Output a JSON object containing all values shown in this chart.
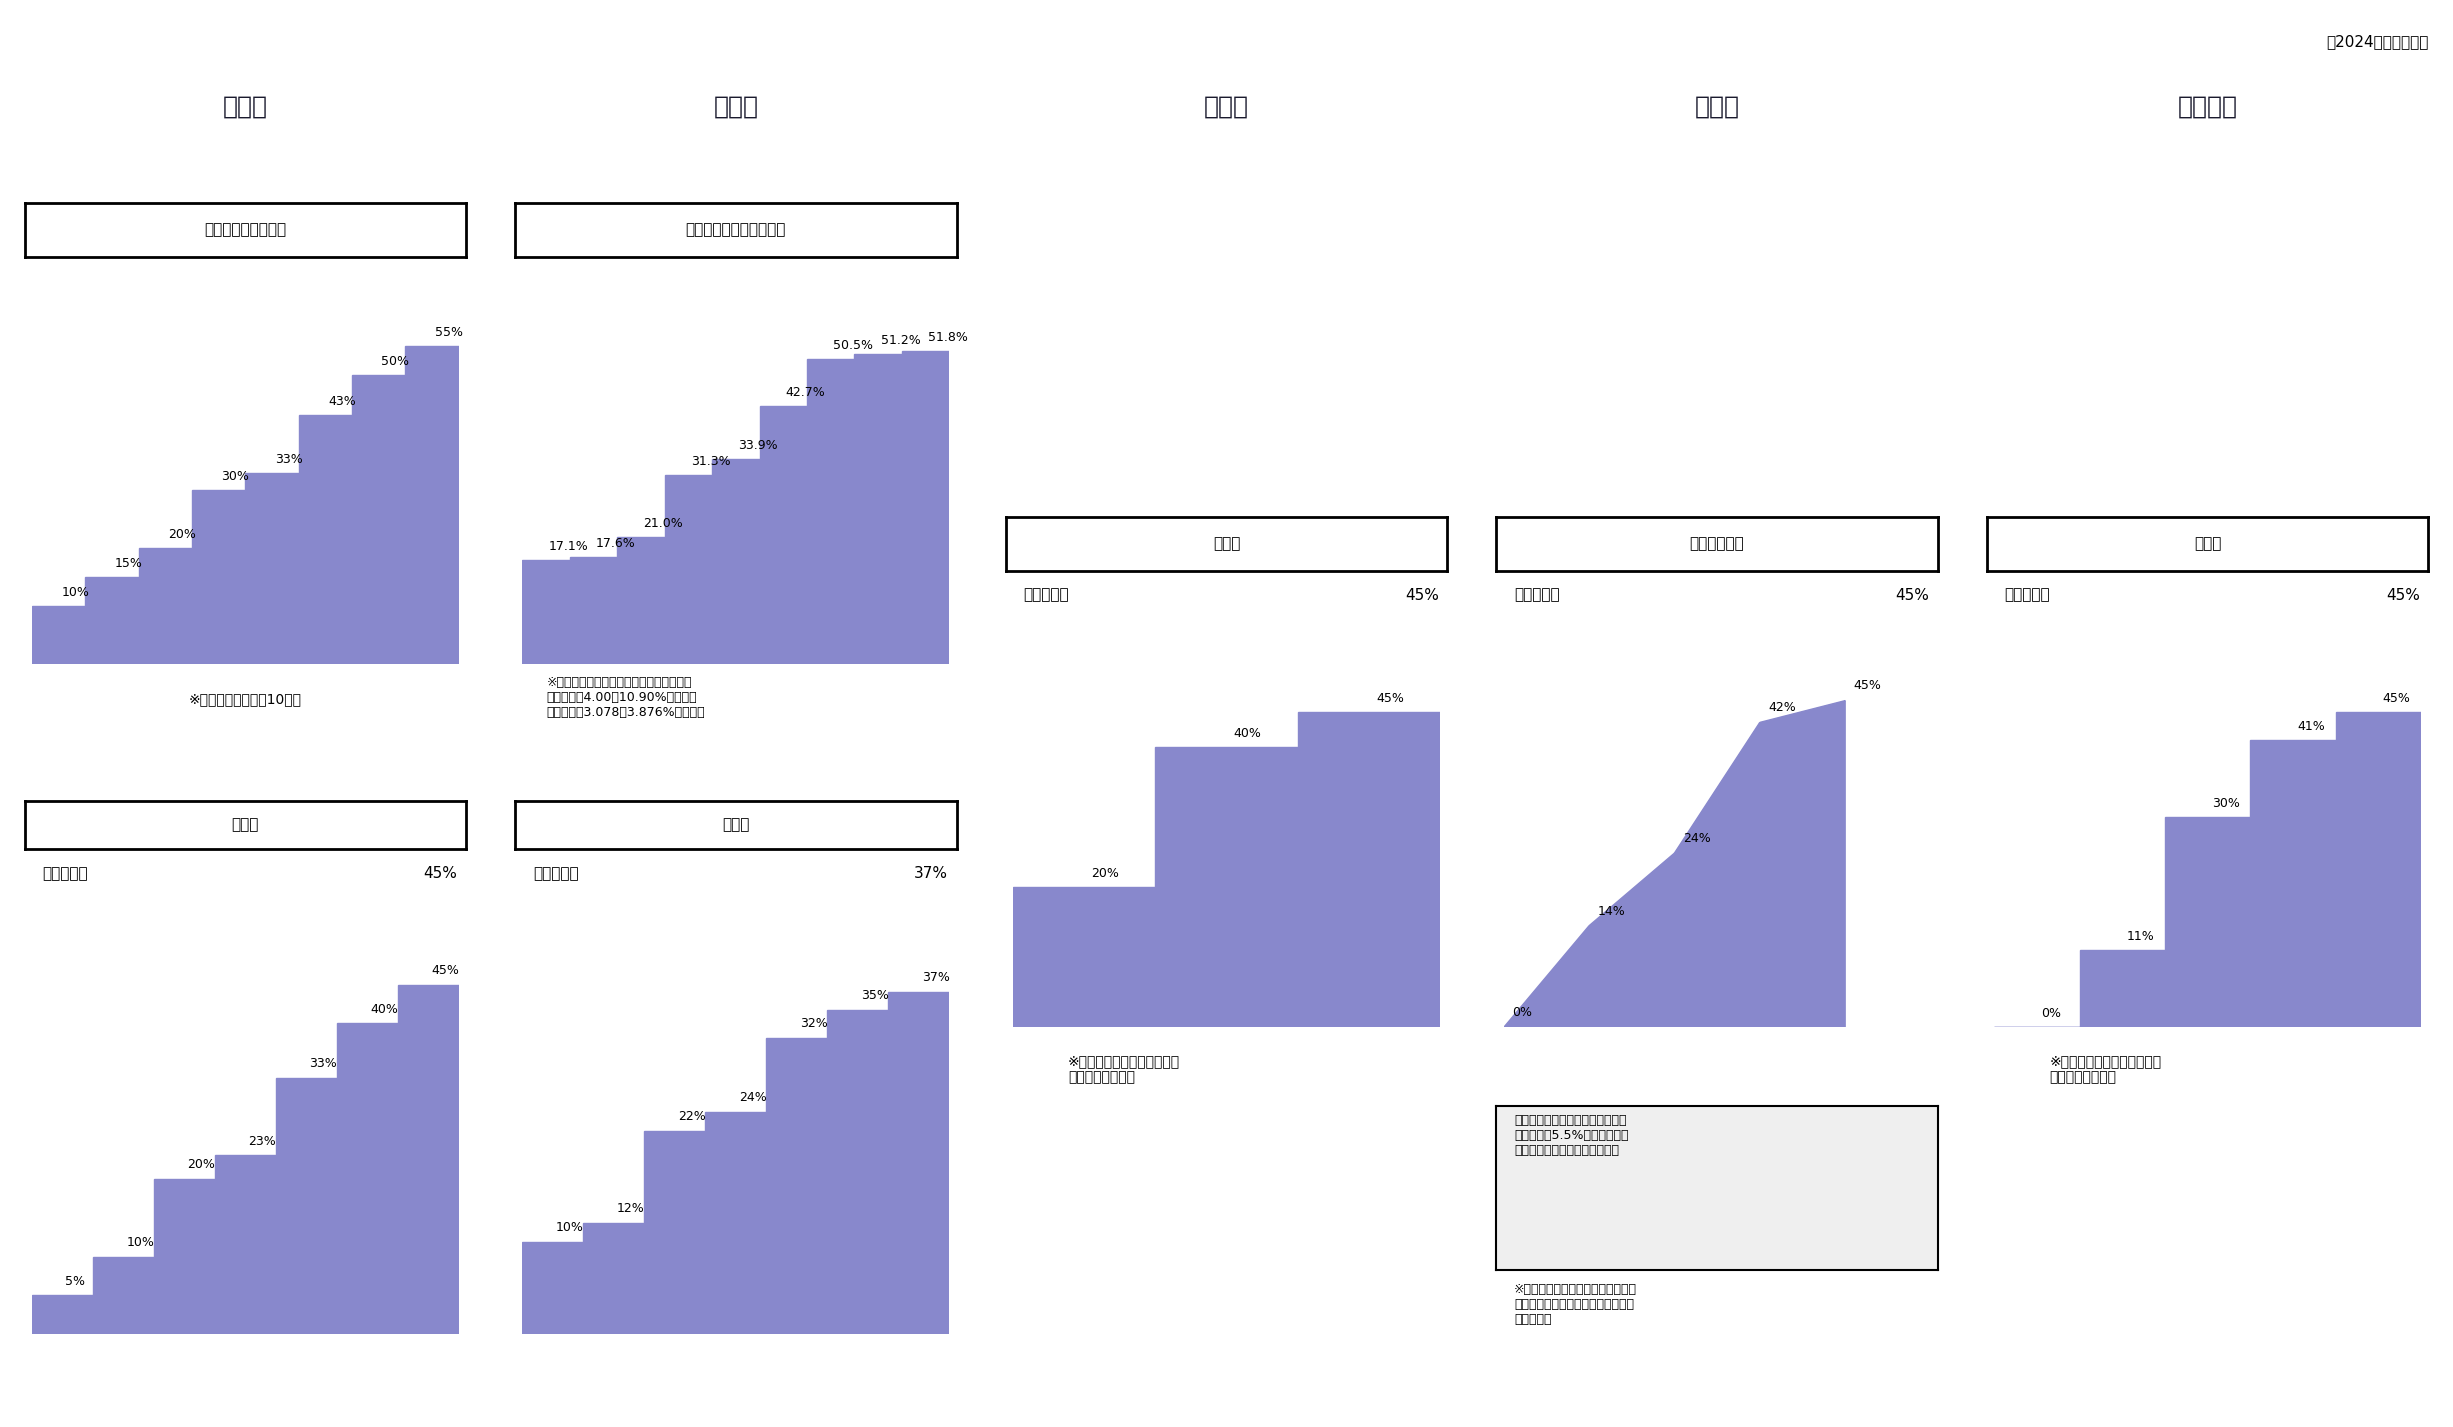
{
  "header_bg": "#b3b3e6",
  "header_border": "#1a1a2e",
  "chart_bg": "#efefef",
  "bar_color": "#8888cc",
  "date_text": "（2024年１月現在）",
  "columns": [
    "日　本",
    "米　国",
    "英　国",
    "ドイツ",
    "フランス"
  ],
  "japan_combined_title": "所得税＋個人住民税",
  "japan_combined_rates": [
    10,
    15,
    20,
    30,
    33,
    43,
    50,
    55
  ],
  "japan_combined_note": "※個人住民税（一律10％）",
  "japan_income_title": "所得税",
  "japan_income_subtitle": "（７段階）",
  "japan_income_rates": [
    5,
    10,
    20,
    23,
    33,
    40,
    45
  ],
  "usa_combined_title": "所得税＋地方個人所得税",
  "usa_combined_rates": [
    17.1,
    17.6,
    21.0,
    31.3,
    33.9,
    42.7,
    50.5,
    51.2,
    51.8
  ],
  "usa_combined_note": "※ニューヨーク州・ニューヨーク市の場合\n　州税率：4.00～10.90%　９段階\n　市税率：3.078～3.876%　４段階",
  "usa_income_title": "所得税",
  "usa_income_subtitle": "（７段階）",
  "usa_income_rates": [
    10,
    12,
    22,
    24,
    32,
    35,
    37
  ],
  "uk_income_title": "所得税",
  "uk_income_subtitle": "（３段階）",
  "uk_income_rates": [
    20,
    40,
    45
  ],
  "uk_note": "※個人所得に対して課される\n　地方税はない。",
  "germany_income_title": "所得税（＊）",
  "germany_income_subtitle": "（方程式）",
  "germany_income_rates": [
    0,
    14,
    24,
    42,
    45
  ],
  "germany_note1": "（＊）所得税に加え、所得税額に\n対して０～5.5%の割合で連帯\n付加税（連邦税）が課される。",
  "germany_note2": "※所得税は共有税であり、連邦、州\n　及び市町村にそれぞれ税収が配分\n　される。",
  "france_income_title": "所得税",
  "france_income_subtitle": "（５段階）",
  "france_income_rates": [
    0,
    11,
    30,
    41,
    45
  ],
  "france_note": "※個人所得に対して課される\n　地方税はない。",
  "col_sep_color": "#aaaaaa",
  "border_color": "#888888"
}
